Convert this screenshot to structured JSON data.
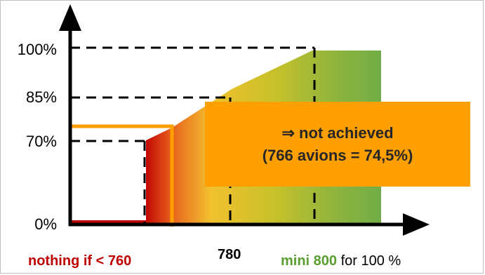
{
  "y_axis": {
    "ticks": [
      "100%",
      "85%",
      "70%",
      "0%"
    ]
  },
  "x_axis": {
    "left_label": "nothing if < 760",
    "middle_label": "780",
    "right_label_strong": "mini 800",
    "right_label_rest": "for 100 %"
  },
  "callout": {
    "line1": "⇒ not achieved",
    "line2": "(766 avions = 74,5%)"
  },
  "colors": {
    "axis": "#000000",
    "red": "#c00000",
    "orange": "#ff9f00",
    "yellow": "#f2c12e",
    "green": "#70ad47",
    "dashed": "#000000"
  }
}
